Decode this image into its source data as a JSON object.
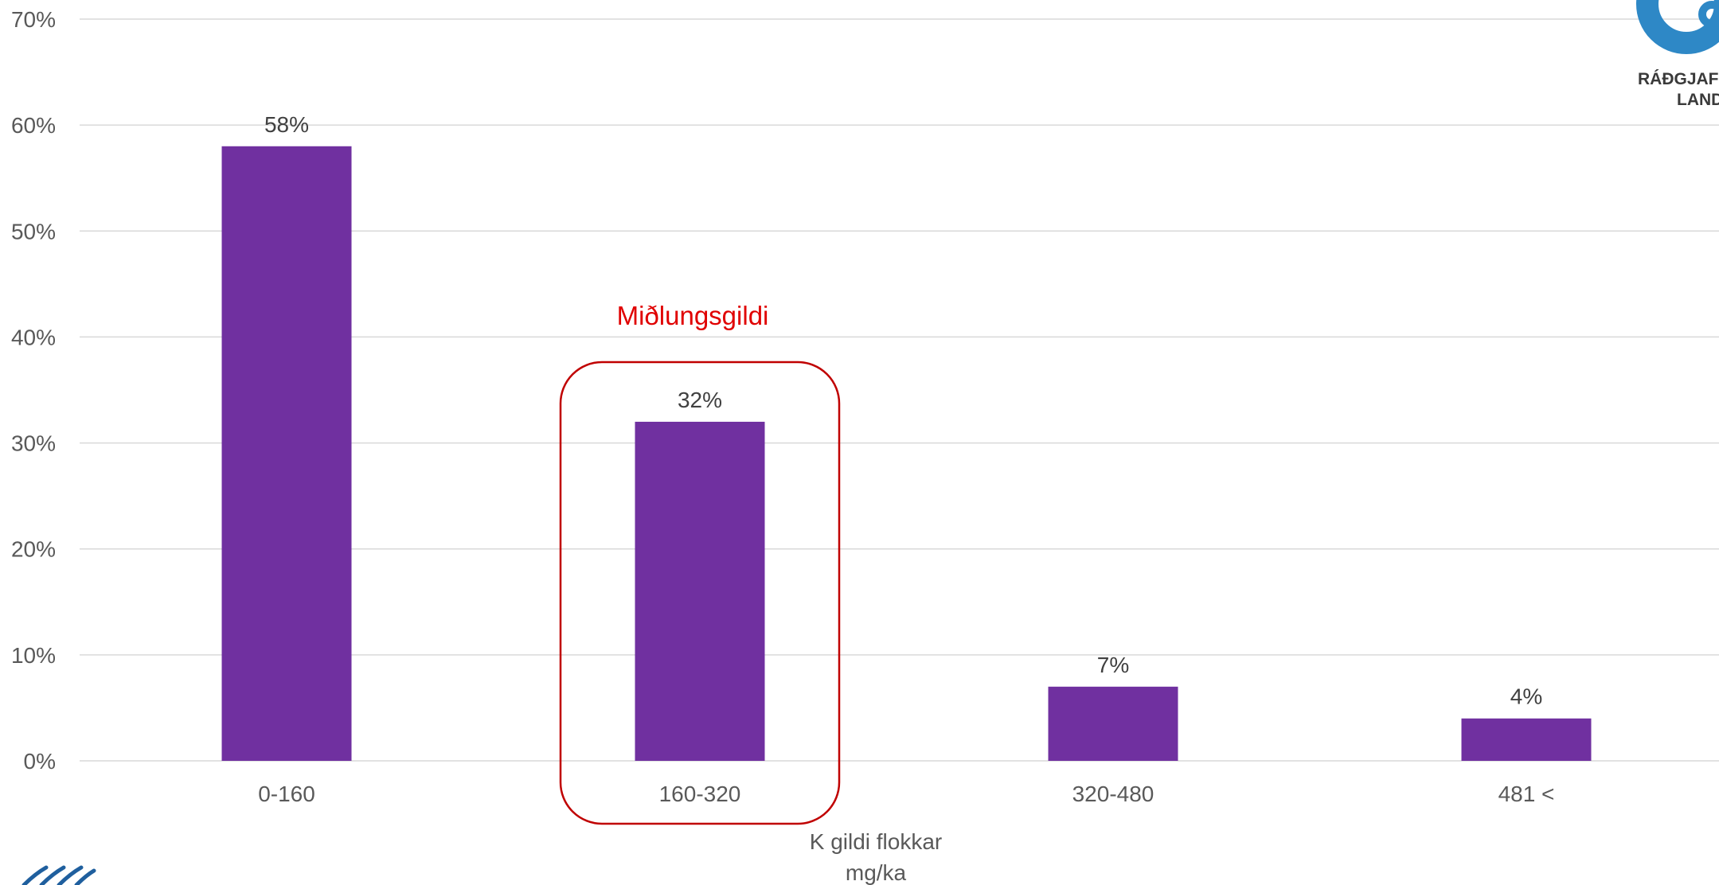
{
  "chart_data": {
    "type": "bar",
    "categories": [
      "0-160",
      "160-320",
      "320-480",
      "481 <"
    ],
    "values": [
      58,
      32,
      7,
      4
    ],
    "data_labels": [
      "58%",
      "32%",
      "7%",
      "4%"
    ],
    "yticks": [
      "0%",
      "10%",
      "20%",
      "30%",
      "40%",
      "50%",
      "60%",
      "70%"
    ],
    "ylim": [
      0,
      70
    ],
    "grid": true,
    "legend": "none",
    "xlabel_lines": [
      "K gildi flokkar",
      "mg/ka"
    ],
    "bar_color": "#7030a0",
    "annotation": {
      "text": "Miðlungsgildi",
      "category": "160-320",
      "color": "#e00000"
    }
  },
  "logo": {
    "line1": "RÁÐGJAF",
    "line2": "LAND",
    "color": "#2e88c6"
  },
  "colors": {
    "grid": "#d9d9d9",
    "axis_text": "#595959",
    "callout_border": "#c00000",
    "corner_mark": "#1f5f9e"
  }
}
